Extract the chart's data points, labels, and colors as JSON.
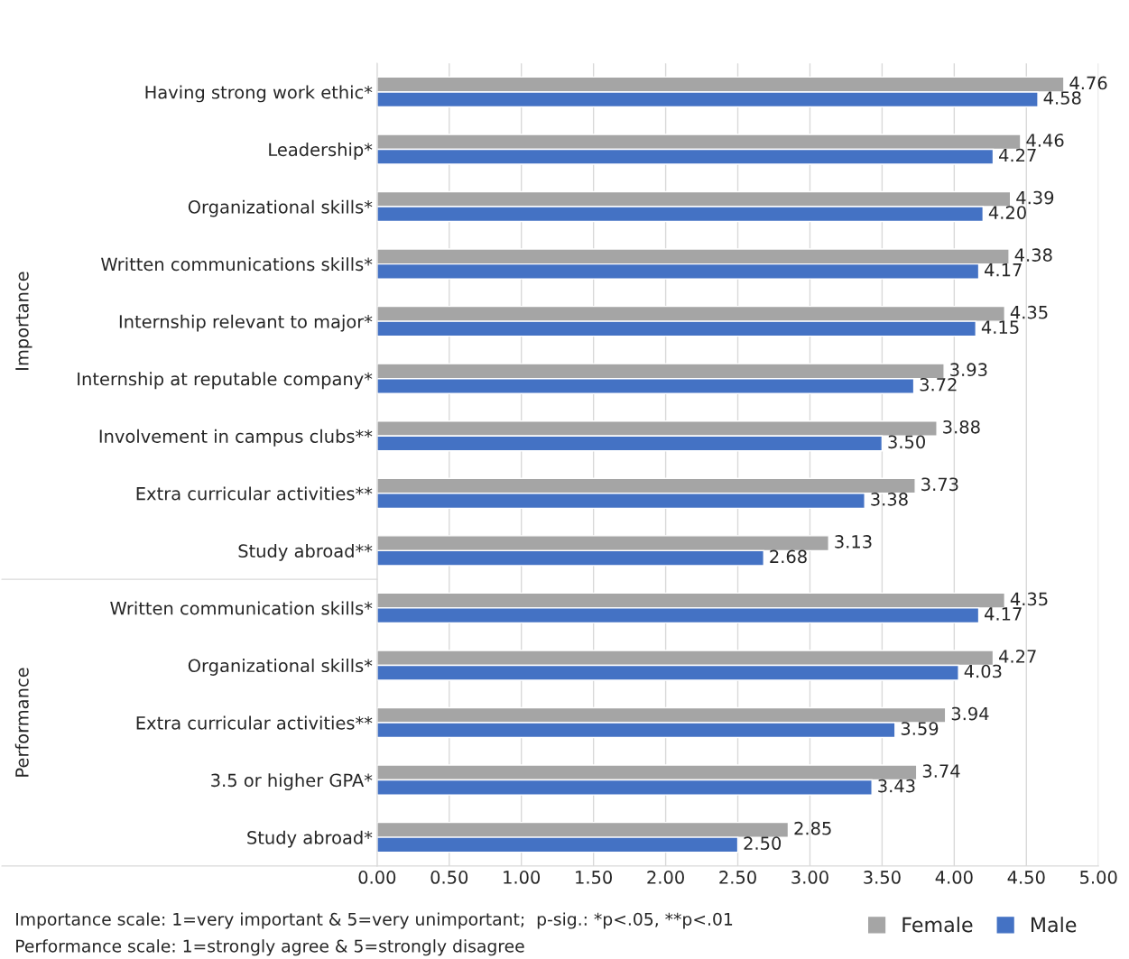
{
  "chart_data": {
    "type": "bar",
    "orientation": "horizontal",
    "categories": [
      "Having strong work ethic*",
      "Leadership*",
      "Organizational skills*",
      "Written communications skills*",
      "Internship relevant to major*",
      "Internship at reputable company*",
      "Involvement in campus clubs**",
      "Extra curricular activities**",
      "Study abroad**",
      "Written communication skills*",
      "Organizational skills*",
      "Extra curricular activities**",
      "3.5 or higher GPA*",
      "Study abroad*"
    ],
    "series": [
      {
        "name": "Female",
        "color": "#a5a5a5",
        "values": [
          4.76,
          4.46,
          4.39,
          4.38,
          4.35,
          3.93,
          3.88,
          3.73,
          3.13,
          4.35,
          4.27,
          3.94,
          3.74,
          2.85
        ],
        "value_labels": [
          "4.76",
          "4.46",
          "4.39",
          "4.38",
          "4.35",
          "3.93",
          "3.88",
          "3.73",
          "3.13",
          "4.35",
          "4.27",
          "3.94",
          "3.74",
          "2.85"
        ]
      },
      {
        "name": "Male",
        "color": "#4472c4",
        "values": [
          4.58,
          4.27,
          4.2,
          4.17,
          4.15,
          3.72,
          3.5,
          3.38,
          2.68,
          4.17,
          4.03,
          3.59,
          3.43,
          2.5
        ],
        "value_labels": [
          "4.58",
          "4.27",
          "4.20",
          "4.17",
          "4.15",
          "3.72",
          "3.50",
          "3.38",
          "2.68",
          "4.17",
          "4.03",
          "3.59",
          "3.43",
          "2.50"
        ]
      }
    ],
    "xlim": [
      0,
      5
    ],
    "xticks": [
      {
        "value": 0,
        "label": "0.00"
      },
      {
        "value": 0.5,
        "label": "0.50"
      },
      {
        "value": 1,
        "label": "1.00"
      },
      {
        "value": 1.5,
        "label": "1.50"
      },
      {
        "value": 2,
        "label": "2.00"
      },
      {
        "value": 2.5,
        "label": "2.50"
      },
      {
        "value": 3,
        "label": "3.00"
      },
      {
        "value": 3.5,
        "label": "3.50"
      },
      {
        "value": 4,
        "label": "4.00"
      },
      {
        "value": 4.5,
        "label": "4.50"
      },
      {
        "value": 5,
        "label": "5.00"
      }
    ],
    "grid": "x",
    "legend": "bottom right",
    "annotations": [
      "Importance",
      "Performance",
      "Importance scale: 1=very important & 5=very unimportant;  p-sig.: *p<.05, **p<.01",
      "Performance scale: 1=strongly agree & 5=strongly disagree"
    ]
  }
}
